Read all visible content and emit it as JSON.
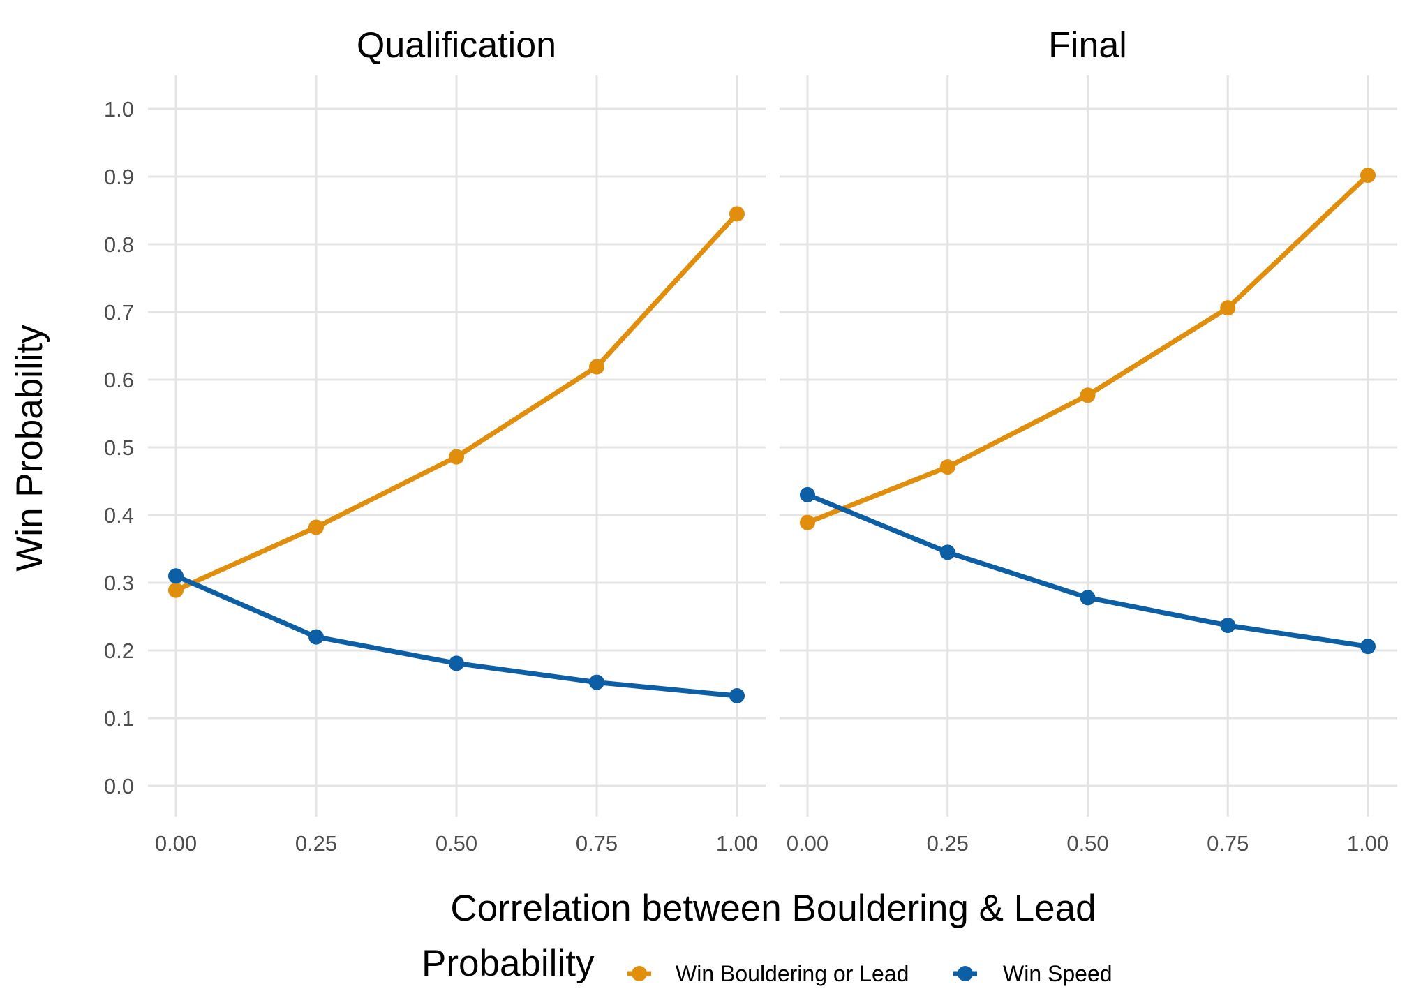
{
  "chart_data": {
    "type": "line",
    "xlabel": "Correlation between Bouldering & Lead",
    "ylabel": "Win Probability",
    "x": [
      0.0,
      0.25,
      0.5,
      0.75,
      1.0
    ],
    "x_tick_labels": [
      "0.00",
      "0.25",
      "0.50",
      "0.75",
      "1.00"
    ],
    "y_tick_labels": [
      "0.0",
      "0.1",
      "0.2",
      "0.3",
      "0.4",
      "0.5",
      "0.6",
      "0.7",
      "0.8",
      "0.9",
      "1.0"
    ],
    "ylim": [
      0,
      1
    ],
    "xlim": [
      0,
      1
    ],
    "grid": true,
    "legend": {
      "title": "Probability",
      "position": "bottom",
      "entries": [
        {
          "name": "Win Bouldering or Lead",
          "color": "#E08E0B"
        },
        {
          "name": "Win Speed",
          "color": "#0D5FA5"
        }
      ]
    },
    "panels": [
      {
        "title": "Qualification",
        "series": [
          {
            "name": "Win Bouldering or Lead",
            "color": "#E08E0B",
            "values": [
              0.289,
              0.382,
              0.486,
              0.619,
              0.845
            ]
          },
          {
            "name": "Win Speed",
            "color": "#0D5FA5",
            "values": [
              0.31,
              0.22,
              0.181,
              0.153,
              0.133
            ]
          }
        ]
      },
      {
        "title": "Final",
        "series": [
          {
            "name": "Win Bouldering or Lead",
            "color": "#E08E0B",
            "values": [
              0.389,
              0.471,
              0.577,
              0.706,
              0.902
            ]
          },
          {
            "name": "Win Speed",
            "color": "#0D5FA5",
            "values": [
              0.43,
              0.345,
              0.278,
              0.237,
              0.206
            ]
          }
        ]
      }
    ]
  }
}
